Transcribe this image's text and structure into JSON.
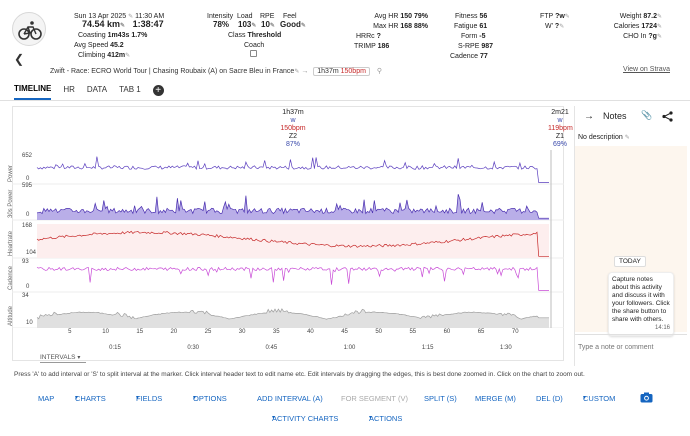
{
  "header": {
    "date": "Sun 13 Apr 2025",
    "time": "11:30 AM",
    "distance": "74.54 km",
    "duration": "1:38:47",
    "coasting_label": "Coasting",
    "coasting_value": "1m43s",
    "coasting_pct": "1.7%",
    "avg_speed_label": "Avg Speed",
    "avg_speed_value": "45.2",
    "climbing_label": "Climbing",
    "climbing_value": "412m",
    "intensity_label": "Intensity",
    "intensity_value": "78%",
    "load_label": "Load",
    "load_value": "103",
    "rpe_label": "RPE",
    "rpe_value": "10",
    "feel_label": "Feel",
    "feel_value": "Good",
    "class_label": "Class",
    "class_value": "Threshold",
    "coach_label": "Coach",
    "avg_hr_label": "Avg HR",
    "avg_hr_value": "150",
    "avg_hr_pct": "79%",
    "max_hr_label": "Max HR",
    "max_hr_value": "168",
    "max_hr_pct": "88%",
    "hrrc_label": "HRRc",
    "hrrc_value": "?",
    "trimp_label": "TRIMP",
    "trimp_value": "186",
    "fitness_label": "Fitness",
    "fitness_value": "56",
    "fatigue_label": "Fatigue",
    "fatigue_value": "61",
    "form_label": "Form",
    "form_value": "-5",
    "srpe_label": "S-RPE",
    "srpe_value": "987",
    "cadence_label": "Cadence",
    "cadence_value": "77",
    "ftp_label": "FTP",
    "ftp_value": "?w",
    "wp_label": "W'",
    "wp_value": "?",
    "weight_label": "Weight",
    "weight_value": "87.2",
    "calories_label": "Calories",
    "calories_value": "1724",
    "cho_label": "CHO In",
    "cho_value": "?g"
  },
  "subtitle": {
    "title": "Zwift - Race: ECRO World Tour | Chasing Roubaix (A) on Sacre Bleu in France",
    "interval_time": "1h37m",
    "interval_hr": "150bpm"
  },
  "strava_link": "View on Strava",
  "tabs": [
    "TIMELINE",
    "HR",
    "DATA",
    "TAB 1"
  ],
  "intervals": [
    {
      "time": "1h37m",
      "w": "w",
      "bpm": "150bpm",
      "zone": "Z2",
      "pct": "87%"
    },
    {
      "time": "2m21",
      "w": "w",
      "bpm": "119bpm",
      "zone": "Z1",
      "pct": "69%"
    }
  ],
  "lanes": [
    {
      "label": "Power",
      "max": "652",
      "min": "0",
      "color": "#5b3fbf"
    },
    {
      "label": "30s Power",
      "max": "595",
      "min": "0",
      "color": "#4a2fb0"
    },
    {
      "label": "Heartrate",
      "max": "168",
      "min": "104",
      "color": "#c62828"
    },
    {
      "label": "Cadence",
      "max": "93",
      "min": "0",
      "color": "#c84bd6"
    },
    {
      "label": "Altitude",
      "max": "34",
      "min": "10",
      "color": "#9e9e9e"
    }
  ],
  "distance_ticks": [
    "5",
    "10",
    "15",
    "20",
    "25",
    "30",
    "35",
    "40",
    "45",
    "50",
    "55",
    "60",
    "65",
    "70"
  ],
  "time_ticks": [
    "0:15",
    "0:30",
    "0:45",
    "1:00",
    "1:15",
    "1:30"
  ],
  "intervals_dropdown": "INTERVALS",
  "notes": {
    "title": "Notes",
    "no_description": "No description",
    "today": "TODAY",
    "bubble": "Capture notes about this activity and discuss it with your followers. Click the share button to share with others.",
    "bubble_time": "14:16",
    "placeholder": "Type a note or comment"
  },
  "help_text": "Press 'A' to add interval or 'S' to split interval at the marker. Click interval header text to edit name etc. Edit intervals by dragging the edges, this is best done zoomed in. Click on the chart to zoom out.",
  "buttons_row1": [
    "MAP",
    "CHARTS",
    "FIELDS",
    "OPTIONS",
    "ADD INTERVAL (A)",
    "FOR SEGMENT (V)",
    "SPLIT (S)",
    "MERGE (M)",
    "DEL (D)",
    "CUSTOM"
  ],
  "buttons_row2": [
    "ACTIVITY CHARTS",
    "ACTIONS"
  ]
}
